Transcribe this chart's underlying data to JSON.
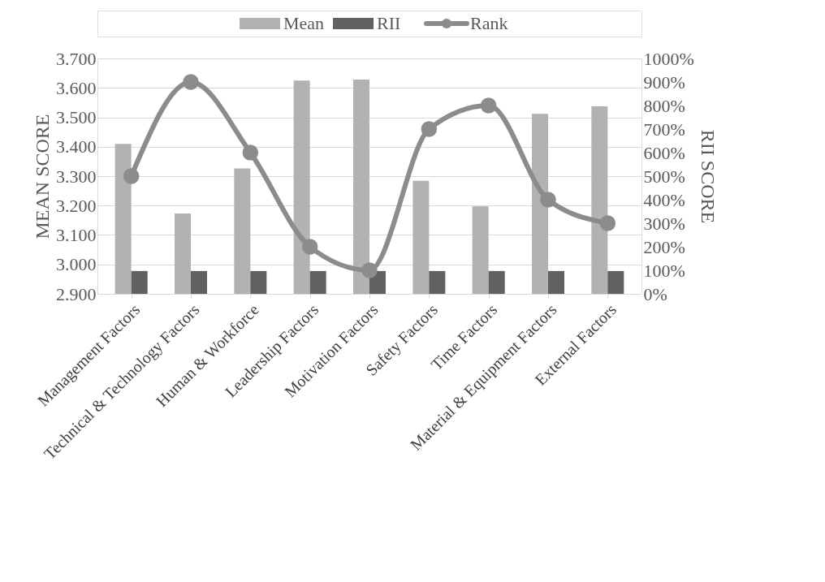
{
  "chart_data": {
    "type": "bar",
    "ylabel": "MEAN SCORE",
    "y2label": "RII SCORE",
    "categories": [
      "Management Factors",
      "Technical & Technology Factors",
      "Human & Workforce",
      "Leadership Factors",
      "Motivation Factors",
      "Safety Factors",
      "Time Factors",
      "Material & Equipment Factors",
      "External Factors"
    ],
    "series": [
      {
        "name": "Mean",
        "color": "#b2b2b2",
        "values": [
          3.41,
          3.173,
          3.326,
          3.625,
          3.628,
          3.284,
          3.197,
          3.512,
          3.537
        ]
      },
      {
        "name": "RII",
        "axis": "y2",
        "color": "#616161",
        "values": [
          97,
          97,
          97,
          97,
          97,
          97,
          97,
          97,
          97
        ]
      },
      {
        "name": "Rank",
        "type": "line",
        "axis": "y2",
        "color": "#8c8c8c",
        "marker": "circle",
        "values": [
          500,
          900,
          600,
          200,
          100,
          700,
          800,
          400,
          300
        ]
      }
    ],
    "ylim": [
      2.9,
      3.7
    ],
    "yticks": [
      {
        "value": 2.9,
        "label": "2.900"
      },
      {
        "value": 3.0,
        "label": "3.000"
      },
      {
        "value": 3.1,
        "label": "3.100"
      },
      {
        "value": 3.2,
        "label": "3.200"
      },
      {
        "value": 3.3,
        "label": "3.300"
      },
      {
        "value": 3.4,
        "label": "3.400"
      },
      {
        "value": 3.5,
        "label": "3.500"
      },
      {
        "value": 3.6,
        "label": "3.600"
      },
      {
        "value": 3.7,
        "label": "3.700"
      }
    ],
    "y2lim": [
      0,
      1000
    ],
    "y2ticks": [
      {
        "value": 0,
        "label": "0%"
      },
      {
        "value": 100,
        "label": "100%"
      },
      {
        "value": 200,
        "label": "200%"
      },
      {
        "value": 300,
        "label": "300%"
      },
      {
        "value": 400,
        "label": "400%"
      },
      {
        "value": 500,
        "label": "500%"
      },
      {
        "value": 600,
        "label": "600%"
      },
      {
        "value": 700,
        "label": "700%"
      },
      {
        "value": 800,
        "label": "800%"
      },
      {
        "value": 900,
        "label": "900%"
      },
      {
        "value": 1000,
        "label": "1000%"
      }
    ],
    "grid": "y",
    "legend": "top"
  }
}
